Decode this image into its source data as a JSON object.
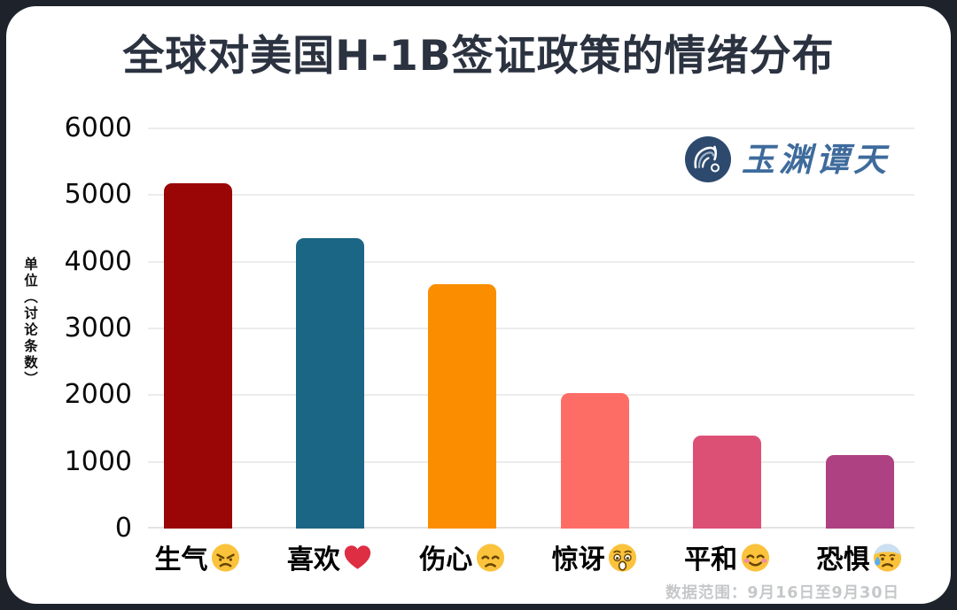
{
  "page": {
    "frame_color": "#1e222a",
    "card_color": "#ffffff"
  },
  "header": {
    "title": "全球对美国H-1B签证政策的情绪分布",
    "title_color": "#2b3240"
  },
  "logo": {
    "name": "玉渊谭天",
    "color": "#3e6b9c",
    "icon": "wave-logo-icon",
    "icon_color": "#2d4a6e"
  },
  "footnote": {
    "text": "数据范围：9月16日至9月30日",
    "color": "#c5c7c9"
  },
  "chart_data": {
    "type": "bar",
    "title": "全球对美国H-1B签证政策的情绪分布",
    "xlabel": "",
    "ylabel": "单位（讨论条数）",
    "ylim": [
      0,
      6000
    ],
    "yticks": [
      0,
      1000,
      2000,
      3000,
      4000,
      5000,
      6000
    ],
    "grid": true,
    "legend": false,
    "categories": [
      "生气",
      "喜欢",
      "伤心",
      "惊讶",
      "平和",
      "恐惧"
    ],
    "category_emojis": [
      "angry",
      "heart",
      "sad",
      "astonished",
      "blush",
      "anxious"
    ],
    "values": [
      5180,
      4360,
      3670,
      2030,
      1400,
      1100
    ],
    "bar_colors": [
      "#9a0506",
      "#1b6684",
      "#fb8e00",
      "#fd6d66",
      "#dd5076",
      "#ad4181"
    ]
  }
}
